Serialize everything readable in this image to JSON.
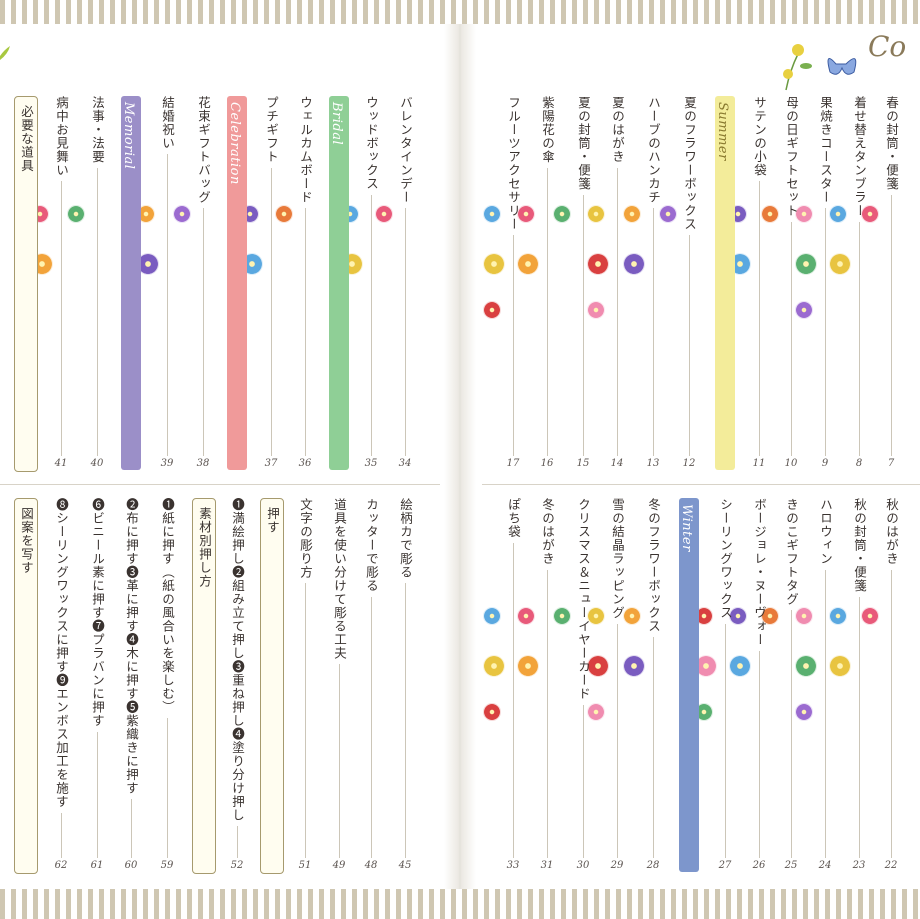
{
  "header": {
    "corner_script": "Co"
  },
  "left_top": [
    {
      "id": "L1",
      "text": "バレンタインデー",
      "page": "34"
    },
    {
      "id": "L2",
      "text": "ウッドボックス",
      "page": "35"
    },
    {
      "id": "L3",
      "band": "Bridal",
      "color": "#8fcf96"
    },
    {
      "id": "L4",
      "text": "ウェルカムボード",
      "page": "36"
    },
    {
      "id": "L5",
      "text": "プチギフト",
      "page": "37"
    },
    {
      "id": "L6",
      "band": "Celebration",
      "color": "#f09a9a"
    },
    {
      "id": "L7",
      "text": "花束ギフトバッグ",
      "page": "38"
    },
    {
      "id": "L8",
      "text": "結婚祝い",
      "page": "39"
    },
    {
      "id": "L9",
      "band": "Memorial",
      "color": "#9b8fc8"
    },
    {
      "id": "L10",
      "text": "法事・法要",
      "page": "40"
    },
    {
      "id": "L11",
      "text": "病中お見舞い",
      "page": "41"
    },
    {
      "id": "L12",
      "box": "必要な道具"
    }
  ],
  "left_bottom": [
    {
      "id": "B1",
      "text": "絵柄カで彫る",
      "page": "45"
    },
    {
      "id": "B2",
      "text": "カッターで彫る",
      "page": "48"
    },
    {
      "id": "B3",
      "text": "道具を使い分けて彫る工夫",
      "page": "49"
    },
    {
      "id": "B4",
      "text": "文字の彫り方",
      "page": "51"
    },
    {
      "id": "B5",
      "box": "押す"
    },
    {
      "id": "B6",
      "text": "❶満絵押し❷組み立て押し❸重ね押し❹塗り分け押し",
      "page": "52"
    },
    {
      "id": "B7",
      "box": "素材別押し方"
    },
    {
      "id": "B8",
      "text": "❶紙に押す（紙の風合いを楽しむ）",
      "page": "59"
    },
    {
      "id": "B9",
      "text": "❷布に押す❸革に押す❹木に押す❺紫織きに押す",
      "page": "60"
    },
    {
      "id": "B10",
      "text": "❻ビニール素に押す❼プラバンに押す",
      "page": "61"
    },
    {
      "id": "B11",
      "text": "❽シーリングワックスに押す❾エンボス加工を施す",
      "page": "62"
    },
    {
      "id": "B12",
      "box": "図案を写す"
    }
  ],
  "right_top": [
    {
      "id": "R1",
      "text": "春の封筒・便箋",
      "page": "7"
    },
    {
      "id": "R2",
      "text": "着せ替えタンブラー",
      "page": "8"
    },
    {
      "id": "R3",
      "text": "果焼きコースター",
      "page": "9"
    },
    {
      "id": "R4",
      "text": "母の日ギフトセット",
      "page": "10"
    },
    {
      "id": "R5",
      "text": "サテンの小袋",
      "page": "11"
    },
    {
      "id": "R6",
      "band": "Summer",
      "color": "#f3ec9a"
    },
    {
      "id": "R7",
      "text": "夏のフラワーボックス",
      "page": "12"
    },
    {
      "id": "R8",
      "text": "ハーブのハンカチ",
      "page": "13"
    },
    {
      "id": "R9",
      "text": "夏のはがき",
      "page": "14"
    },
    {
      "id": "R10",
      "text": "夏の封筒・便箋",
      "page": "15"
    },
    {
      "id": "R11",
      "text": "紫陽花の傘",
      "page": "16"
    },
    {
      "id": "R12",
      "text": "フルーツアクセサリー",
      "page": "17"
    }
  ],
  "right_bottom": [
    {
      "id": "S1",
      "text": "秋のはがき",
      "page": "22"
    },
    {
      "id": "S2",
      "text": "秋の封筒・便箋",
      "page": "23"
    },
    {
      "id": "S3",
      "text": "ハロウィン",
      "page": "24"
    },
    {
      "id": "S4",
      "text": "きのこギフトタグ",
      "page": "25"
    },
    {
      "id": "S5",
      "text": "ボージョレ・ヌーヴォー",
      "page": "26"
    },
    {
      "id": "S6",
      "text": "シーリングワックス",
      "page": "27"
    },
    {
      "id": "S7",
      "band": "Winter",
      "color": "#7d96cc"
    },
    {
      "id": "S8",
      "text": "冬のフラワーボックス",
      "page": "28"
    },
    {
      "id": "S9",
      "text": "雪の結晶ラッピング",
      "page": "29"
    },
    {
      "id": "S10",
      "text": "クリスマス＆ニューイヤーカード",
      "page": "30"
    },
    {
      "id": "S11",
      "text": "冬のはがき",
      "page": "31"
    },
    {
      "id": "S12",
      "text": "ぽち袋",
      "page": "33"
    }
  ],
  "icons": {
    "flower_colors": [
      "#e85a7a",
      "#f2a33a",
      "#7a5cc0",
      "#5aa8e0",
      "#e8c440",
      "#d94040",
      "#f08cb0",
      "#5ab070",
      "#9b6bd0",
      "#e87a3a"
    ]
  }
}
